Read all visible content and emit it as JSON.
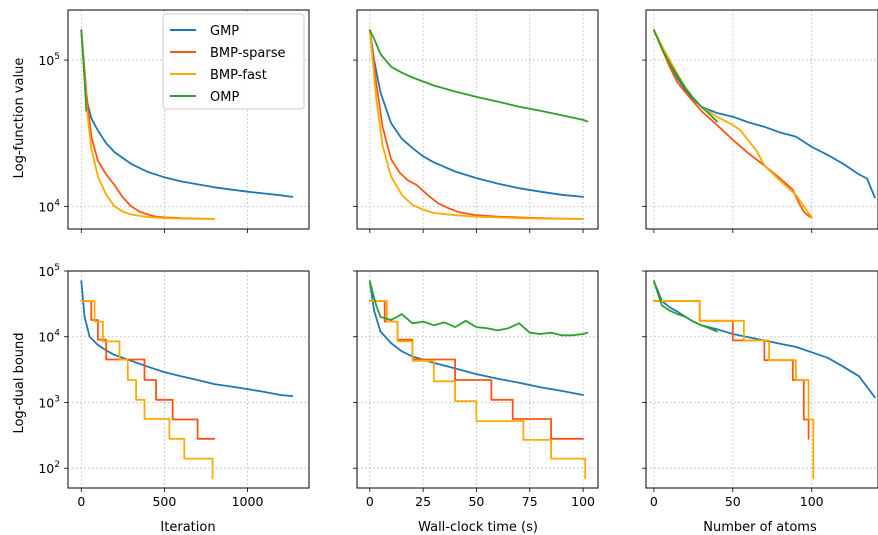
{
  "chart_data": {
    "type": "line",
    "colors": {
      "GMP": "#1f77b4",
      "BMP-sparse": "#ff5511",
      "BMP-fast": "#ffaa00",
      "OMP": "#2ca02c"
    },
    "legend": {
      "placement": "top-right of first panel",
      "entries": [
        "GMP",
        "BMP-sparse",
        "BMP-fast",
        "OMP"
      ]
    },
    "grid": true,
    "rows": [
      {
        "ylabel": "Log-function value",
        "yscale": "log",
        "ytick_labels": [
          "10^4"
        ]
      },
      {
        "ylabel": "Log-dual bound",
        "yscale": "log",
        "ylim": [
          50,
          100000
        ],
        "ytick_labels": [
          "10^2",
          "10^3",
          "10^4",
          "10^5"
        ]
      }
    ],
    "columns": [
      {
        "xlabel": "Iteration",
        "xlim": [
          -80,
          1370
        ],
        "xticks": [
          0,
          500,
          1000
        ],
        "xtick_labels": [
          "0",
          "500",
          "1000"
        ]
      },
      {
        "xlabel": "Wall-clock time (s)",
        "xlim": [
          -6,
          107
        ],
        "xticks": [
          0,
          25,
          50,
          75,
          100
        ],
        "xtick_labels": [
          "0",
          "25",
          "50",
          "75",
          "100"
        ]
      },
      {
        "xlabel": "Number of atoms",
        "xlim": [
          -5,
          142
        ],
        "xticks": [
          0,
          50,
          100
        ],
        "xtick_labels": [
          "0",
          "50",
          "100"
        ]
      }
    ],
    "panels": [
      {
        "row": 0,
        "col": 0,
        "ylim": [
          7000,
          220000
        ],
        "series": [
          {
            "name": "GMP",
            "x": [
              0,
              30,
              60,
              100,
              150,
              200,
              300,
              400,
              500,
              600,
              800,
              1000,
              1200,
              1270
            ],
            "y": [
              160000,
              55000,
              40000,
              33000,
              27000,
              23500,
              19500,
              17200,
              15800,
              14800,
              13500,
              12600,
              11900,
              11600
            ]
          },
          {
            "name": "BMP-sparse",
            "x": [
              0,
              30,
              60,
              100,
              150,
              200,
              250,
              300,
              350,
              400,
              450,
              500,
              600,
              700,
              800
            ],
            "y": [
              160000,
              60000,
              30000,
              20500,
              16500,
              14000,
              11500,
              10000,
              9200,
              8800,
              8500,
              8400,
              8300,
              8250,
              8200
            ]
          },
          {
            "name": "BMP-fast",
            "x": [
              0,
              30,
              60,
              100,
              150,
              200,
              250,
              300,
              350,
              400,
              500,
              600,
              700,
              800
            ],
            "y": [
              160000,
              50000,
              25000,
              16000,
              12000,
              10000,
              9200,
              8800,
              8600,
              8450,
              8300,
              8250,
              8220,
              8200
            ]
          },
          {
            "name": "OMP",
            "x": [
              0,
              15,
              30
            ],
            "y": [
              160000,
              90000,
              45000
            ]
          }
        ]
      },
      {
        "row": 0,
        "col": 1,
        "ylim": [
          7000,
          220000
        ],
        "series": [
          {
            "name": "GMP",
            "x": [
              0,
              2,
              5,
              10,
              15,
              20,
              25,
              30,
              40,
              50,
              60,
              70,
              80,
              90,
              100
            ],
            "y": [
              160000,
              100000,
              60000,
              37000,
              29000,
              25000,
              22000,
              20000,
              17300,
              15600,
              14300,
              13300,
              12600,
              12000,
              11600
            ]
          },
          {
            "name": "BMP-sparse",
            "x": [
              0,
              3,
              6,
              10,
              14,
              18,
              22,
              27,
              32,
              37,
              42,
              50,
              60,
              70,
              80,
              90,
              100
            ],
            "y": [
              160000,
              70000,
              35000,
              21000,
              17000,
              15000,
              14000,
              12000,
              10500,
              9700,
              9100,
              8700,
              8500,
              8400,
              8300,
              8250,
              8200
            ]
          },
          {
            "name": "BMP-fast",
            "x": [
              0,
              3,
              6,
              10,
              15,
              20,
              25,
              30,
              40,
              50,
              60,
              70,
              80,
              90,
              100
            ],
            "y": [
              160000,
              55000,
              26000,
              16000,
              12000,
              10200,
              9500,
              9000,
              8700,
              8500,
              8400,
              8300,
              8250,
              8220,
              8200
            ]
          },
          {
            "name": "OMP",
            "x": [
              0,
              2,
              5,
              10,
              15,
              20,
              30,
              40,
              50,
              60,
              70,
              80,
              90,
              100,
              102
            ],
            "y": [
              160000,
              140000,
              110000,
              90000,
              82000,
              76000,
              67000,
              61000,
              56000,
              52000,
              48000,
              45000,
              42000,
              39000,
              38000
            ]
          }
        ]
      },
      {
        "row": 0,
        "col": 2,
        "ylim": [
          7000,
          220000
        ],
        "series": [
          {
            "name": "GMP",
            "x": [
              0,
              5,
              10,
              15,
              20,
              25,
              30,
              40,
              50,
              60,
              70,
              80,
              90,
              100,
              110,
              120,
              130,
              135,
              140
            ],
            "y": [
              160000,
              125000,
              95000,
              75000,
              62000,
              54000,
              48000,
              43500,
              41000,
              37500,
              35000,
              32000,
              30000,
              25500,
              22500,
              19500,
              16500,
              15500,
              11500
            ]
          },
          {
            "name": "BMP-sparse",
            "x": [
              0,
              5,
              10,
              15,
              20,
              25,
              30,
              40,
              50,
              60,
              70,
              80,
              88,
              92,
              95,
              98,
              100
            ],
            "y": [
              160000,
              120000,
              90000,
              70000,
              60000,
              52000,
              45000,
              36000,
              28500,
              23000,
              19000,
              15500,
              13000,
              10500,
              9200,
              8600,
              8400
            ]
          },
          {
            "name": "BMP-fast",
            "x": [
              0,
              5,
              10,
              15,
              20,
              25,
              30,
              40,
              50,
              55,
              60,
              65,
              70,
              80,
              90,
              95,
              100
            ],
            "y": [
              160000,
              125000,
              100000,
              80000,
              65000,
              55000,
              48000,
              41000,
              36000,
              33000,
              28000,
              24000,
              19000,
              15000,
              12000,
              10000,
              8400
            ]
          },
          {
            "name": "OMP",
            "x": [
              0,
              5,
              10,
              15,
              20,
              25,
              30,
              35,
              40
            ],
            "y": [
              160000,
              120000,
              95000,
              78000,
              64000,
              55000,
              48000,
              43000,
              38000
            ]
          }
        ]
      },
      {
        "row": 1,
        "col": 0,
        "ylim": [
          50,
          100000
        ],
        "series": [
          {
            "name": "GMP",
            "x": [
              0,
              20,
              50,
              100,
              150,
              200,
              300,
              400,
              500,
              600,
              700,
              800,
              900,
              1000,
              1100,
              1200,
              1270
            ],
            "y": [
              70000,
              20000,
              10000,
              7500,
              6200,
              5300,
              4300,
              3500,
              2900,
              2500,
              2200,
              1900,
              1750,
              1600,
              1450,
              1300,
              1250
            ]
          },
          {
            "name": "BMP-sparse",
            "step": true,
            "x": [
              0,
              30,
              60,
              100,
              150,
              250,
              380,
              450,
              550,
              700,
              800
            ],
            "y": [
              35000,
              35000,
              18000,
              9000,
              4500,
              4500,
              2200,
              1100,
              550,
              280,
              280
            ]
          },
          {
            "name": "BMP-fast",
            "step": true,
            "x": [
              0,
              40,
              80,
              130,
              230,
              280,
              330,
              380,
              530,
              620,
              770,
              790
            ],
            "y": [
              35000,
              35000,
              17000,
              8500,
              4500,
              2200,
              1100,
              560,
              280,
              140,
              140,
              70
            ]
          }
        ]
      },
      {
        "row": 1,
        "col": 1,
        "ylim": [
          50,
          100000
        ],
        "series": [
          {
            "name": "GMP",
            "x": [
              0,
              2,
              5,
              10,
              15,
              20,
              30,
              40,
              50,
              60,
              70,
              80,
              90,
              100
            ],
            "y": [
              70000,
              25000,
              12000,
              8000,
              6000,
              5000,
              4000,
              3300,
              2700,
              2300,
              2000,
              1700,
              1500,
              1300
            ]
          },
          {
            "name": "BMP-sparse",
            "step": true,
            "x": [
              0,
              3,
              7,
              13,
              20,
              28,
              40,
              57,
              67,
              85,
              100
            ],
            "y": [
              35000,
              35000,
              17000,
              9000,
              4500,
              4500,
              2200,
              1100,
              560,
              280,
              280
            ]
          },
          {
            "name": "BMP-fast",
            "step": true,
            "x": [
              0,
              3,
              8,
              13,
              20,
              30,
              40,
              50,
              72,
              85,
              100,
              101
            ],
            "y": [
              35000,
              35000,
              17000,
              8500,
              4300,
              2100,
              1050,
              520,
              270,
              140,
              140,
              70
            ]
          },
          {
            "name": "OMP",
            "x": [
              0,
              3,
              5,
              10,
              15,
              20,
              25,
              30,
              35,
              40,
              45,
              50,
              55,
              60,
              65,
              70,
              75,
              80,
              85,
              90,
              95,
              100,
              102
            ],
            "y": [
              70000,
              30000,
              20000,
              18000,
              22000,
              16000,
              17000,
              15000,
              16500,
              14000,
              17500,
              14000,
              13500,
              12500,
              13500,
              16000,
              11500,
              11000,
              11500,
              10500,
              10500,
              11000,
              11500
            ]
          }
        ]
      },
      {
        "row": 1,
        "col": 2,
        "ylim": [
          50,
          100000
        ],
        "series": [
          {
            "name": "GMP",
            "x": [
              0,
              5,
              10,
              15,
              20,
              25,
              30,
              40,
              50,
              60,
              70,
              80,
              90,
              100,
              110,
              120,
              130,
              140
            ],
            "y": [
              70000,
              35000,
              28000,
              24000,
              20000,
              17000,
              15000,
              13000,
              11000,
              9800,
              8800,
              7800,
              7000,
              5800,
              4800,
              3500,
              2500,
              1200
            ]
          },
          {
            "name": "BMP-sparse",
            "step": true,
            "x": [
              0,
              29,
              50,
              70,
              88,
              95,
              98
            ],
            "y": [
              35000,
              17500,
              8800,
              4400,
              2200,
              550,
              280
            ]
          },
          {
            "name": "BMP-fast",
            "step": true,
            "x": [
              0,
              29,
              57,
              73,
              90,
              98,
              101
            ],
            "y": [
              35000,
              17500,
              8800,
              4400,
              2200,
              550,
              70
            ]
          },
          {
            "name": "OMP",
            "x": [
              0,
              5,
              10,
              15,
              20,
              25,
              30,
              35,
              40
            ],
            "y": [
              70000,
              30000,
              25000,
              22000,
              20000,
              17000,
              15000,
              13500,
              12000
            ]
          }
        ]
      }
    ]
  }
}
